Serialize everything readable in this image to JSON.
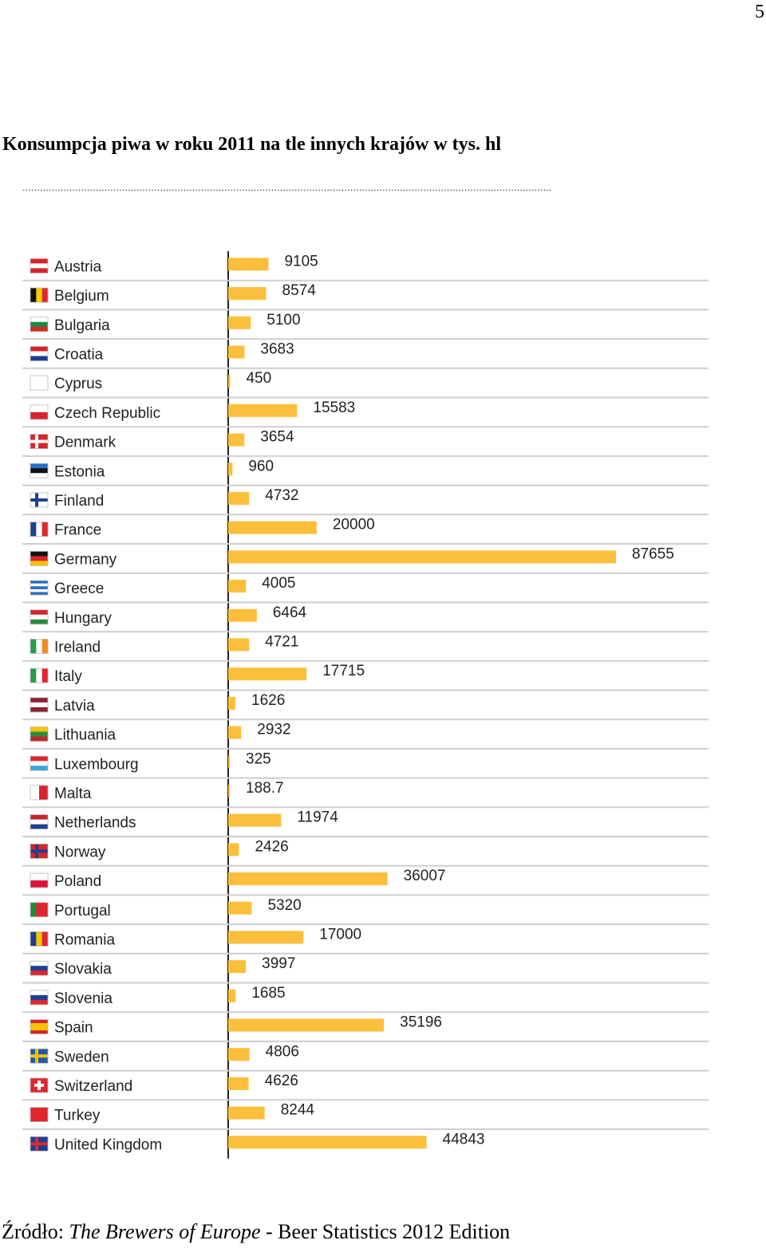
{
  "page_number": "5",
  "title": "Konsumpcja piwa w roku 2011 na tle innych krajów w tys. hl",
  "dotted_line": "……………………………………………………………………………………………………………………………………………………………….",
  "source": {
    "prefix": "Źródło: ",
    "italic": "The Brewers of Europe",
    "suffix": " - Beer Statistics 2012 Edition"
  },
  "colors": {
    "bar": "#fbbf3b",
    "gridline": "#cfcfcf",
    "axis": "#222222"
  },
  "chart_data": {
    "type": "bar",
    "orientation": "horizontal",
    "title": "",
    "xlabel": "",
    "ylabel": "",
    "grid": true,
    "xlim": [
      0,
      87655
    ],
    "categories": [
      "Austria",
      "Belgium",
      "Bulgaria",
      "Croatia",
      "Cyprus",
      "Czech Republic",
      "Denmark",
      "Estonia",
      "Finland",
      "France",
      "Germany",
      "Greece",
      "Hungary",
      "Ireland",
      "Italy",
      "Latvia",
      "Lithuania",
      "Luxembourg",
      "Malta",
      "Netherlands",
      "Norway",
      "Poland",
      "Portugal",
      "Romania",
      "Slovakia",
      "Slovenia",
      "Spain",
      "Sweden",
      "Switzerland",
      "Turkey",
      "United Kingdom"
    ],
    "values": [
      9105,
      8574,
      5100,
      3683,
      450,
      15583,
      3654,
      960,
      4732,
      20000,
      87655,
      4005,
      6464,
      4721,
      17715,
      1626,
      2932,
      325,
      188.7,
      11974,
      2426,
      36007,
      5320,
      17000,
      3997,
      1685,
      35196,
      4806,
      4626,
      8244,
      44843
    ],
    "value_labels": [
      "9105",
      "8574",
      "5100",
      "3683",
      "450",
      "15583",
      "3654",
      "960",
      "4732",
      "20000",
      "87655",
      "4005",
      "6464",
      "4721",
      "17715",
      "1626",
      "2932",
      "325",
      "188.7",
      "11974",
      "2426",
      "36007",
      "5320",
      "17000",
      "3997",
      "1685",
      "35196",
      "4806",
      "4626",
      "8244",
      "44843"
    ],
    "flag_icons": [
      "flag-austria-icon",
      "flag-belgium-icon",
      "flag-bulgaria-icon",
      "flag-croatia-icon",
      "flag-cyprus-icon",
      "flag-czech-republic-icon",
      "flag-denmark-icon",
      "flag-estonia-icon",
      "flag-finland-icon",
      "flag-france-icon",
      "flag-germany-icon",
      "flag-greece-icon",
      "flag-hungary-icon",
      "flag-ireland-icon",
      "flag-italy-icon",
      "flag-latvia-icon",
      "flag-lithuania-icon",
      "flag-luxembourg-icon",
      "flag-malta-icon",
      "flag-netherlands-icon",
      "flag-norway-icon",
      "flag-poland-icon",
      "flag-portugal-icon",
      "flag-romania-icon",
      "flag-slovakia-icon",
      "flag-slovenia-icon",
      "flag-spain-icon",
      "flag-sweden-icon",
      "flag-switzerland-icon",
      "flag-turkey-icon",
      "flag-united-kingdom-icon"
    ]
  }
}
